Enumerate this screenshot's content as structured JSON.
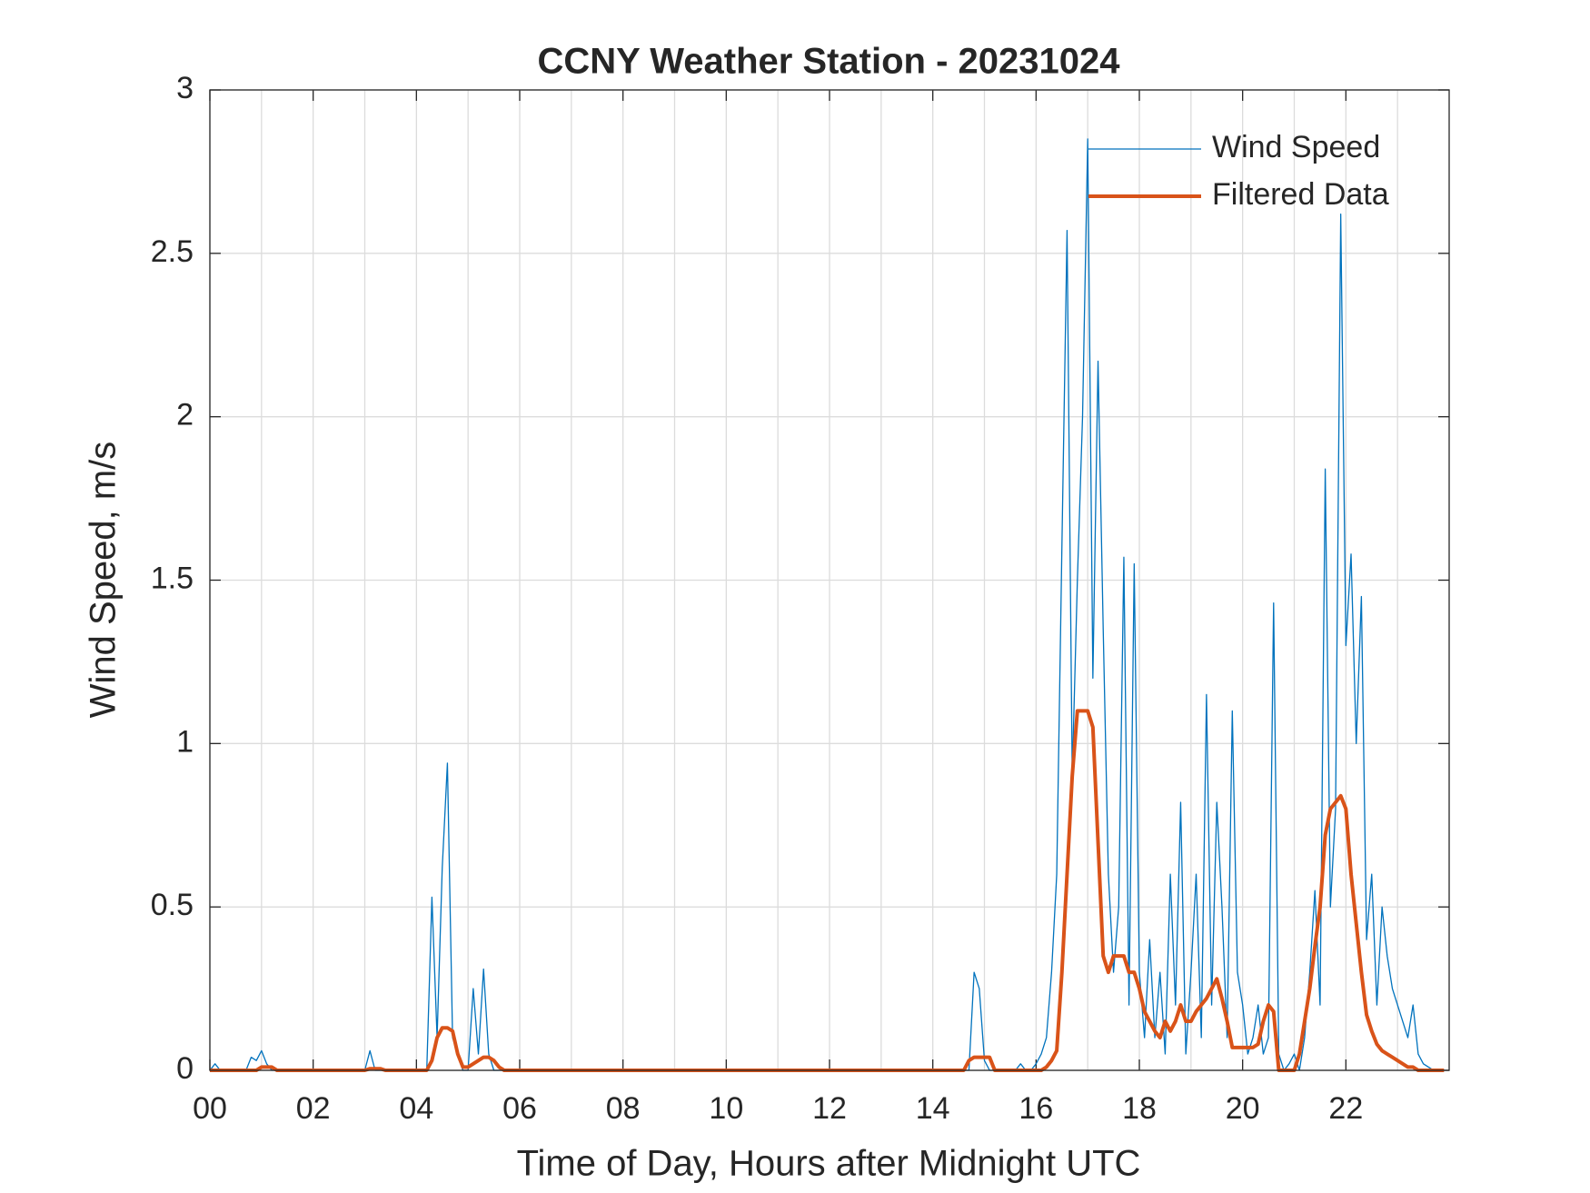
{
  "chart_data": {
    "type": "line",
    "title": "CCNY Weather Station - 20231024",
    "xlabel": "Time of Day, Hours after Midnight UTC",
    "ylabel": "Wind Speed, m/s",
    "xlim": [
      0,
      24
    ],
    "ylim": [
      0,
      3
    ],
    "xticks": [
      {
        "value": 0,
        "label": "00"
      },
      {
        "value": 2,
        "label": "02"
      },
      {
        "value": 4,
        "label": "04"
      },
      {
        "value": 6,
        "label": "06"
      },
      {
        "value": 8,
        "label": "08"
      },
      {
        "value": 10,
        "label": "10"
      },
      {
        "value": 12,
        "label": "12"
      },
      {
        "value": 14,
        "label": "14"
      },
      {
        "value": 16,
        "label": "16"
      },
      {
        "value": 18,
        "label": "18"
      },
      {
        "value": 20,
        "label": "20"
      },
      {
        "value": 22,
        "label": "22"
      }
    ],
    "xminorgrid": [
      1,
      3,
      5,
      7,
      9,
      11,
      13,
      15,
      17,
      19,
      21,
      23
    ],
    "yticks": [
      0,
      0.5,
      1,
      1.5,
      2,
      2.5,
      3
    ],
    "grid": true,
    "legend": "northeast",
    "x": [
      0,
      0.1,
      0.2,
      0.3,
      0.4,
      0.5,
      0.6,
      0.7,
      0.8,
      0.9,
      1,
      1.1,
      1.2,
      1.3,
      1.4,
      1.5,
      1.6,
      1.7,
      1.8,
      1.9,
      2,
      2.1,
      2.2,
      2.3,
      2.4,
      2.5,
      2.6,
      2.7,
      2.8,
      2.9,
      3,
      3.1,
      3.2,
      3.3,
      3.4,
      3.5,
      3.6,
      3.7,
      3.8,
      3.9,
      4,
      4.1,
      4.2,
      4.3,
      4.4,
      4.5,
      4.6,
      4.7,
      4.8,
      4.9,
      5,
      5.1,
      5.2,
      5.3,
      5.4,
      5.5,
      5.6,
      5.7,
      5.8,
      5.9,
      6,
      6.1,
      6.2,
      6.3,
      6.4,
      6.5,
      6.6,
      6.7,
      6.8,
      6.9,
      7,
      7.1,
      7.2,
      7.3,
      7.4,
      7.5,
      7.6,
      7.7,
      7.8,
      7.9,
      8,
      8.1,
      8.2,
      8.3,
      8.4,
      8.5,
      8.6,
      8.7,
      8.8,
      8.9,
      9,
      9.1,
      9.2,
      9.3,
      9.4,
      9.5,
      9.6,
      9.7,
      9.8,
      9.9,
      10,
      10.1,
      10.2,
      10.3,
      10.4,
      10.5,
      10.6,
      10.7,
      10.8,
      10.9,
      11,
      11.1,
      11.2,
      11.3,
      11.4,
      11.5,
      11.6,
      11.7,
      11.8,
      11.9,
      12,
      12.1,
      12.2,
      12.3,
      12.4,
      12.5,
      12.6,
      12.7,
      12.8,
      12.9,
      13,
      13.1,
      13.2,
      13.3,
      13.4,
      13.5,
      13.6,
      13.7,
      13.8,
      13.9,
      14,
      14.1,
      14.2,
      14.3,
      14.4,
      14.5,
      14.6,
      14.7,
      14.8,
      14.9,
      15,
      15.1,
      15.2,
      15.3,
      15.4,
      15.5,
      15.6,
      15.7,
      15.8,
      15.9,
      16,
      16.1,
      16.2,
      16.3,
      16.4,
      16.5,
      16.6,
      16.7,
      16.8,
      16.9,
      17,
      17.1,
      17.2,
      17.3,
      17.4,
      17.5,
      17.6,
      17.7,
      17.8,
      17.9,
      18,
      18.1,
      18.2,
      18.3,
      18.4,
      18.5,
      18.6,
      18.7,
      18.8,
      18.9,
      19,
      19.1,
      19.2,
      19.3,
      19.4,
      19.5,
      19.6,
      19.7,
      19.8,
      19.9,
      20,
      20.1,
      20.2,
      20.3,
      20.4,
      20.5,
      20.6,
      20.7,
      20.8,
      20.9,
      21,
      21.1,
      21.2,
      21.3,
      21.4,
      21.5,
      21.6,
      21.7,
      21.8,
      21.9,
      22,
      22.1,
      22.2,
      22.3,
      22.4,
      22.5,
      22.6,
      22.7,
      22.8,
      22.9,
      23,
      23.1,
      23.2,
      23.3,
      23.4,
      23.5,
      23.6,
      23.7,
      23.8,
      23.9
    ],
    "series": [
      {
        "name": "Wind Speed",
        "color": "#0072BD",
        "width": 1.3,
        "values": [
          0,
          0.02,
          0,
          0,
          0,
          0,
          0,
          0,
          0.04,
          0.03,
          0.06,
          0.02,
          0,
          0,
          0,
          0,
          0,
          0,
          0,
          0,
          0,
          0,
          0,
          0,
          0,
          0,
          0,
          0,
          0,
          0,
          0,
          0.06,
          0,
          0,
          0,
          0,
          0,
          0,
          0,
          0,
          0,
          0,
          0,
          0.53,
          0.1,
          0.62,
          0.94,
          0.1,
          0.05,
          0,
          0,
          0.25,
          0.05,
          0.31,
          0.05,
          0,
          0,
          0,
          0,
          0,
          0,
          0,
          0,
          0,
          0,
          0,
          0,
          0,
          0,
          0,
          0,
          0,
          0,
          0,
          0,
          0,
          0,
          0,
          0,
          0,
          0,
          0,
          0,
          0,
          0,
          0,
          0,
          0,
          0,
          0,
          0,
          0,
          0,
          0,
          0,
          0,
          0,
          0,
          0,
          0,
          0,
          0,
          0,
          0,
          0,
          0,
          0,
          0,
          0,
          0,
          0,
          0,
          0,
          0,
          0,
          0,
          0,
          0,
          0,
          0,
          0,
          0,
          0,
          0,
          0,
          0,
          0,
          0,
          0,
          0,
          0,
          0,
          0,
          0,
          0,
          0,
          0,
          0,
          0,
          0,
          0,
          0,
          0,
          0,
          0,
          0,
          0,
          0,
          0.3,
          0.25,
          0.03,
          0,
          0,
          0,
          0,
          0,
          0,
          0.02,
          0,
          0,
          0.02,
          0.05,
          0.1,
          0.3,
          0.6,
          1.6,
          2.57,
          0.9,
          1.5,
          2.0,
          2.85,
          1.2,
          2.17,
          1.35,
          0.6,
          0.3,
          0.5,
          1.57,
          0.2,
          1.55,
          0.3,
          0.1,
          0.4,
          0.1,
          0.3,
          0.05,
          0.6,
          0.2,
          0.82,
          0.05,
          0.3,
          0.6,
          0.1,
          1.15,
          0.2,
          0.82,
          0.5,
          0.1,
          1.1,
          0.3,
          0.2,
          0.05,
          0.1,
          0.2,
          0.05,
          0.1,
          1.43,
          0.05,
          0,
          0.02,
          0.05,
          0,
          0.1,
          0.3,
          0.55,
          0.2,
          1.84,
          0.5,
          0.8,
          2.62,
          1.3,
          1.58,
          1.0,
          1.45,
          0.4,
          0.6,
          0.2,
          0.5,
          0.35,
          0.25,
          0.2,
          0.15,
          0.1,
          0.2,
          0.05,
          0.02,
          0.01,
          0,
          0,
          0
        ]
      },
      {
        "name": "Filtered Data",
        "color": "#D95319",
        "width": 4,
        "values": [
          0,
          0,
          0,
          0,
          0,
          0,
          0,
          0,
          0,
          0,
          0.01,
          0.01,
          0.01,
          0,
          0,
          0,
          0,
          0,
          0,
          0,
          0,
          0,
          0,
          0,
          0,
          0,
          0,
          0,
          0,
          0,
          0,
          0.005,
          0.005,
          0.005,
          0,
          0,
          0,
          0,
          0,
          0,
          0,
          0,
          0,
          0.03,
          0.1,
          0.13,
          0.13,
          0.12,
          0.05,
          0.01,
          0.01,
          0.02,
          0.03,
          0.04,
          0.04,
          0.03,
          0.01,
          0,
          0,
          0,
          0,
          0,
          0,
          0,
          0,
          0,
          0,
          0,
          0,
          0,
          0,
          0,
          0,
          0,
          0,
          0,
          0,
          0,
          0,
          0,
          0,
          0,
          0,
          0,
          0,
          0,
          0,
          0,
          0,
          0,
          0,
          0,
          0,
          0,
          0,
          0,
          0,
          0,
          0,
          0,
          0,
          0,
          0,
          0,
          0,
          0,
          0,
          0,
          0,
          0,
          0,
          0,
          0,
          0,
          0,
          0,
          0,
          0,
          0,
          0,
          0,
          0,
          0,
          0,
          0,
          0,
          0,
          0,
          0,
          0,
          0,
          0,
          0,
          0,
          0,
          0,
          0,
          0,
          0,
          0,
          0,
          0,
          0,
          0,
          0,
          0,
          0,
          0.03,
          0.04,
          0.04,
          0.04,
          0.04,
          0,
          0,
          0,
          0,
          0,
          0,
          0,
          0,
          0,
          0,
          0.01,
          0.03,
          0.06,
          0.3,
          0.6,
          0.9,
          1.1,
          1.1,
          1.1,
          1.05,
          0.7,
          0.35,
          0.3,
          0.35,
          0.35,
          0.35,
          0.3,
          0.3,
          0.25,
          0.18,
          0.15,
          0.12,
          0.1,
          0.15,
          0.12,
          0.15,
          0.2,
          0.15,
          0.15,
          0.18,
          0.2,
          0.22,
          0.25,
          0.28,
          0.22,
          0.15,
          0.07,
          0.07,
          0.07,
          0.07,
          0.07,
          0.08,
          0.15,
          0.2,
          0.18,
          0,
          0,
          0,
          0,
          0.05,
          0.15,
          0.25,
          0.38,
          0.5,
          0.72,
          0.8,
          0.82,
          0.84,
          0.8,
          0.6,
          0.45,
          0.3,
          0.17,
          0.12,
          0.08,
          0.06,
          0.05,
          0.04,
          0.03,
          0.02,
          0.01,
          0.01,
          0,
          0,
          0,
          0,
          0,
          0
        ]
      }
    ]
  }
}
